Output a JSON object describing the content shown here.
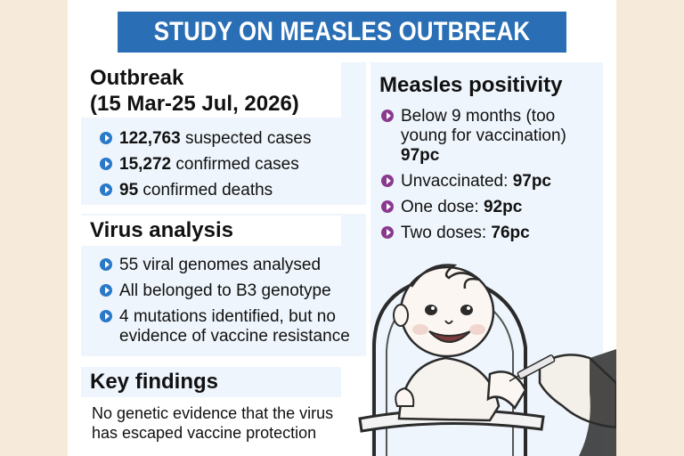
{
  "title": "STUDY ON MEASLES OUTBREAK",
  "outbreak": {
    "heading_line1": "Outbreak",
    "heading_line2": "(15 Mar-25 Jul, 2026)",
    "items": [
      {
        "value": "122,763",
        "text": " suspected cases"
      },
      {
        "value": "15,272",
        "text": " confirmed cases"
      },
      {
        "value": "95",
        "text": " confirmed deaths"
      }
    ]
  },
  "virus": {
    "heading": "Virus analysis",
    "items": [
      "55 viral genomes analysed",
      "All belonged to B3 genotype",
      "4 mutations identified, but no evidence of vaccine resistance"
    ]
  },
  "findings": {
    "heading": "Key findings",
    "text": "No genetic evidence that the virus has escaped vaccine protection"
  },
  "positivity": {
    "heading": "Measles positivity",
    "items": [
      {
        "label": "Below 9 months (too young for vaccination) ",
        "value": "97pc"
      },
      {
        "label": "Unvaccinated: ",
        "value": "97pc"
      },
      {
        "label": "One dose: ",
        "value": "92pc"
      },
      {
        "label": "Two doses: ",
        "value": "76pc"
      }
    ]
  },
  "illustration": "baby-receiving-vaccine-illustration",
  "colors": {
    "title_bar": "#2a6fb5",
    "panel": "#eef5fc",
    "bullet_blue": "#2a78c8",
    "bullet_purple": "#8a3a8e",
    "page_background": "#f6eadb"
  }
}
